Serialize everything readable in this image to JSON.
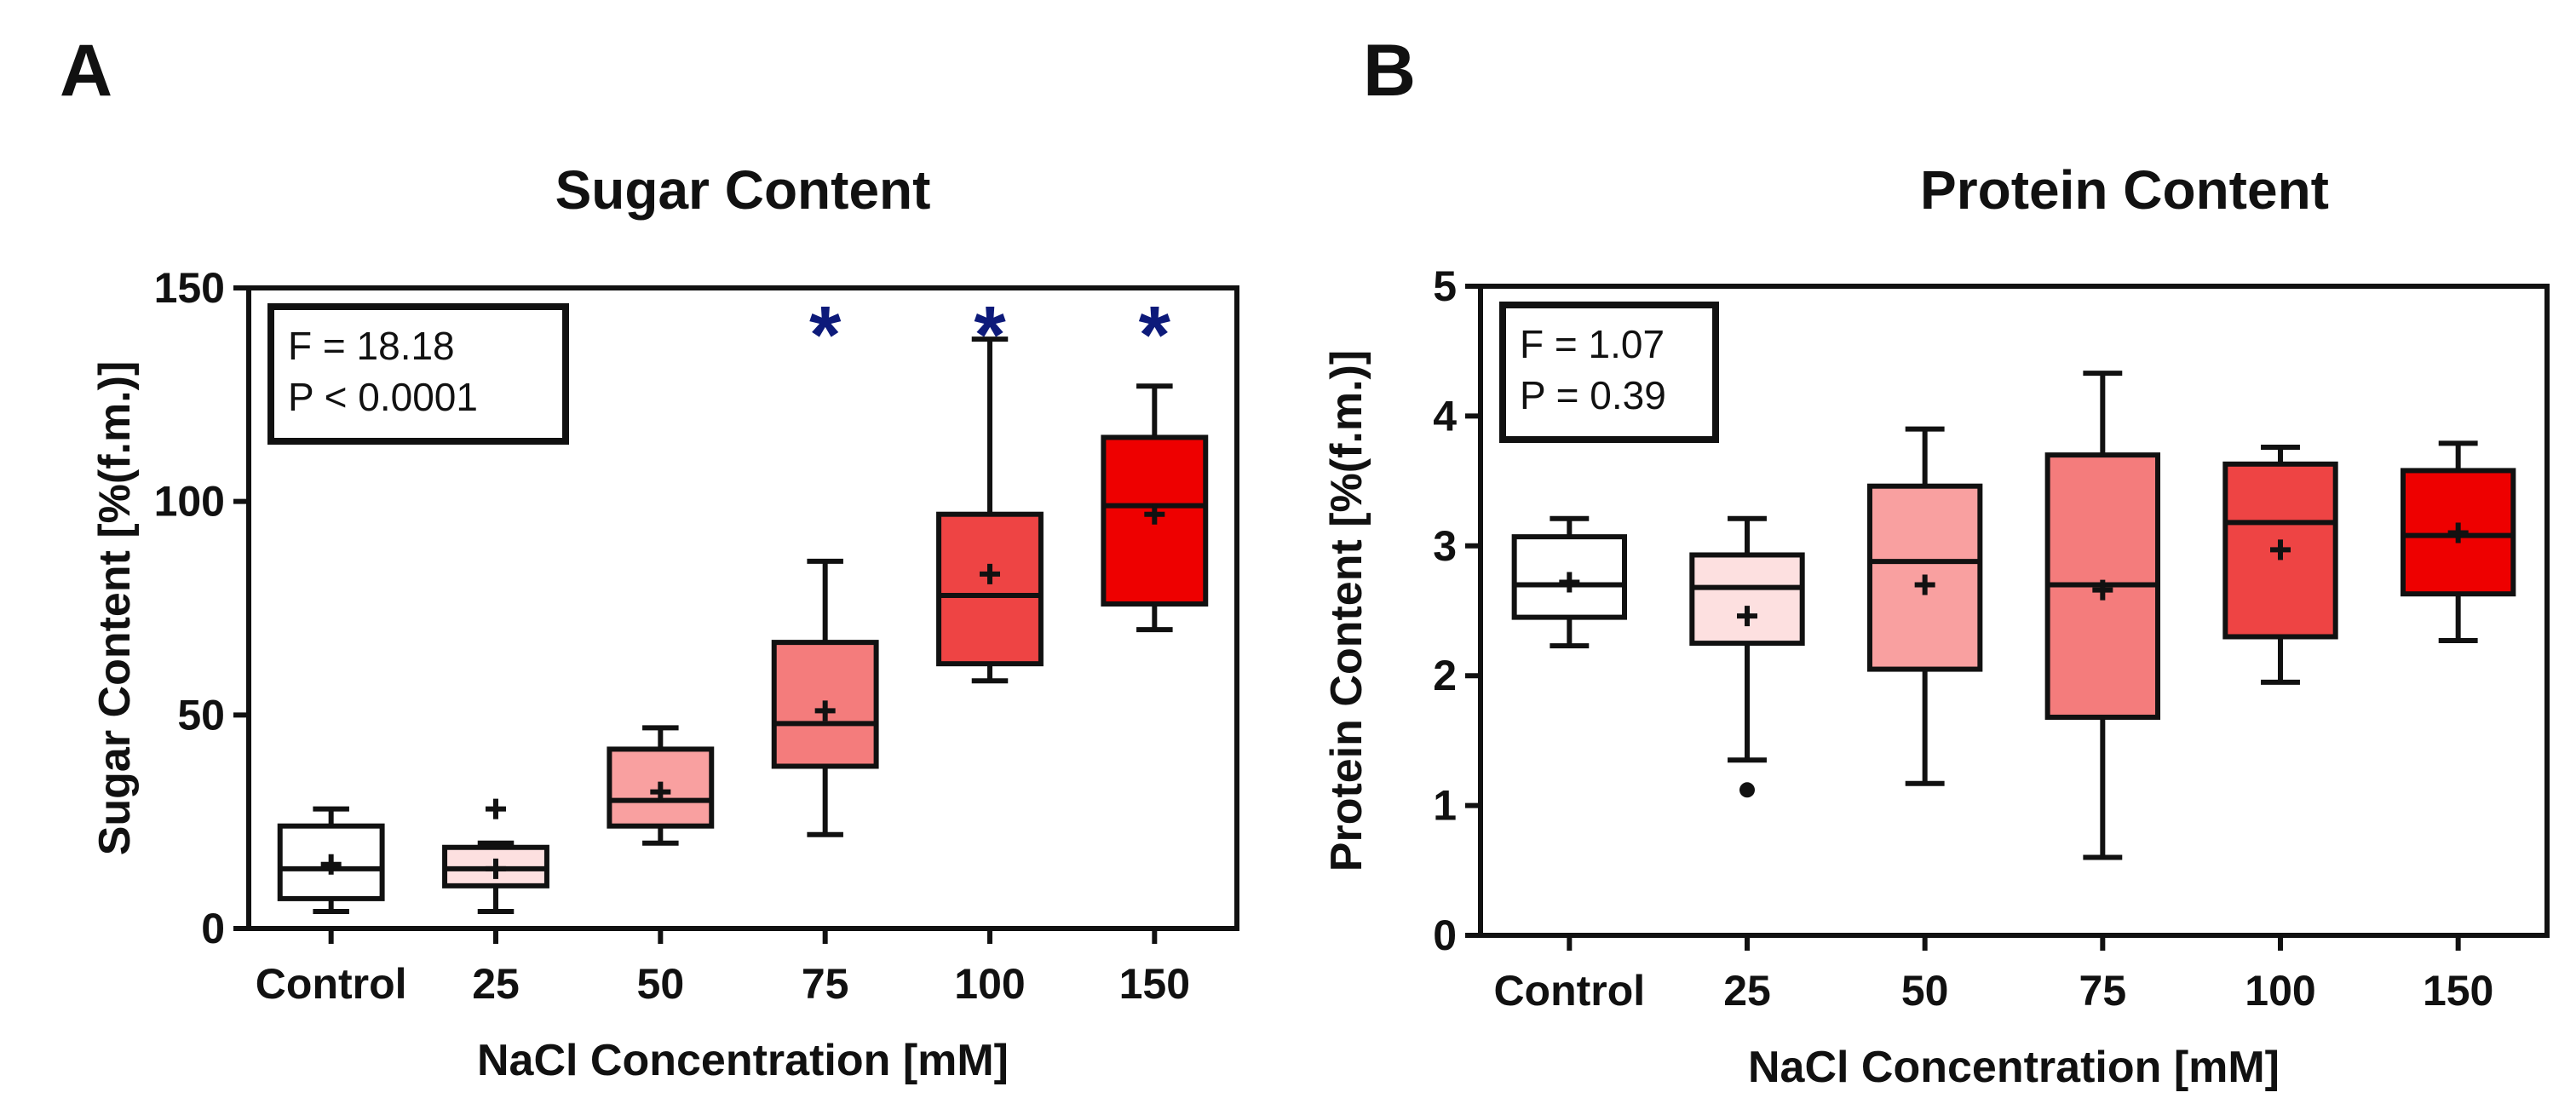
{
  "figure": {
    "panels": [
      "A",
      "B"
    ]
  },
  "chart_data": [
    {
      "type": "boxplot",
      "panel": "A",
      "title": "Sugar Content",
      "xlabel": "NaCl Concentration [mM]",
      "ylabel": "Sugar Content [%(f.m.)]",
      "ylim": [
        0,
        150
      ],
      "yticks": [
        0,
        50,
        100,
        150
      ],
      "categories": [
        "Control",
        "25",
        "50",
        "75",
        "100",
        "150"
      ],
      "colors": [
        "#ffffff",
        "#fde0e0",
        "#f9a0a0",
        "#f47c7c",
        "#ee4444",
        "#ee0000"
      ],
      "stats_lines": [
        "F = 18.18",
        "P < 0.0001"
      ],
      "boxes": [
        {
          "min": 4,
          "q1": 7,
          "median": 14,
          "q3": 24,
          "max": 28,
          "mean": 15
        },
        {
          "min": 4,
          "q1": 10,
          "median": 14,
          "q3": 19,
          "max": 20,
          "mean": 14
        },
        {
          "min": 20,
          "q1": 24,
          "median": 30,
          "q3": 42,
          "max": 47,
          "mean": 32
        },
        {
          "min": 22,
          "q1": 38,
          "median": 48,
          "q3": 67,
          "max": 86,
          "mean": 51
        },
        {
          "min": 58,
          "q1": 62,
          "median": 78,
          "q3": 97,
          "max": 138,
          "mean": 83
        },
        {
          "min": 70,
          "q1": 76,
          "median": 99,
          "q3": 115,
          "max": 127,
          "mean": 97
        }
      ],
      "mean_outliers": [
        {
          "category": "25",
          "value": 28
        }
      ],
      "significance": [
        {
          "category": "75",
          "label": "*"
        },
        {
          "category": "100",
          "label": "*"
        },
        {
          "category": "150",
          "label": "*"
        }
      ],
      "significance_color": "#0d1a7a"
    },
    {
      "type": "boxplot",
      "panel": "B",
      "title": "Protein Content",
      "xlabel": "NaCl Concentration [mM]",
      "ylabel": "Protein Content [%(f.m.)]",
      "ylim": [
        0,
        5
      ],
      "yticks": [
        0,
        1,
        2,
        3,
        4,
        5
      ],
      "categories": [
        "Control",
        "25",
        "50",
        "75",
        "100",
        "150"
      ],
      "colors": [
        "#ffffff",
        "#fde0e0",
        "#f9a0a0",
        "#f47c7c",
        "#ee4444",
        "#ee0000"
      ],
      "stats_lines": [
        "F = 1.07",
        "P = 0.39"
      ],
      "boxes": [
        {
          "min": 2.23,
          "q1": 2.45,
          "median": 2.7,
          "q3": 3.07,
          "max": 3.21,
          "mean": 2.72
        },
        {
          "min": 1.35,
          "q1": 2.25,
          "median": 2.68,
          "q3": 2.93,
          "max": 3.21,
          "mean": 2.46
        },
        {
          "min": 1.17,
          "q1": 2.05,
          "median": 2.88,
          "q3": 3.46,
          "max": 3.9,
          "mean": 2.7
        },
        {
          "min": 0.6,
          "q1": 1.68,
          "median": 2.7,
          "q3": 3.7,
          "max": 4.33,
          "mean": 2.66
        },
        {
          "min": 1.95,
          "q1": 2.3,
          "median": 3.18,
          "q3": 3.63,
          "max": 3.76,
          "mean": 2.97
        },
        {
          "min": 2.27,
          "q1": 2.63,
          "median": 3.08,
          "q3": 3.58,
          "max": 3.79,
          "mean": 3.1
        }
      ],
      "outlier_points": [
        {
          "category": "25",
          "value": 1.12
        }
      ],
      "significance": []
    }
  ]
}
